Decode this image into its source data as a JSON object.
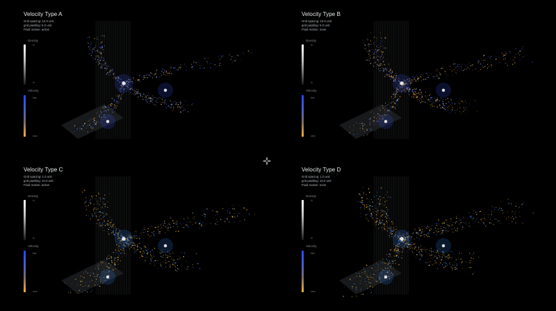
{
  "panels": [
    {
      "title": "Velocity Type A",
      "meta": [
        "Grid spacing: 10.0 unit",
        "grid padding: 5.0 unit",
        "Fluid motion: active"
      ],
      "legend": {
        "density": "Density",
        "velocity": "Velocity",
        "density_hi": "hi",
        "density_lo": "lo",
        "velocity_hi": "fast",
        "velocity_lo": "slow"
      },
      "palette": {
        "accent": "#3b5bff",
        "warm": "#f0a93a",
        "core": "#ffffff"
      }
    },
    {
      "title": "Velocity Type B",
      "meta": [
        "Grid spacing: 10.0 unit",
        "grid padding: 5.0 unit",
        "Fluid motion: none"
      ],
      "legend": {
        "density": "Density",
        "velocity": "Velocity",
        "density_hi": "hi",
        "density_lo": "lo",
        "velocity_hi": "fast",
        "velocity_lo": "slow"
      },
      "palette": {
        "accent": "#3b5bff",
        "warm": "#f0a93a",
        "core": "#ffffff"
      }
    },
    {
      "title": "Velocity Type C",
      "meta": [
        "Grid spacing: 1.0 unit",
        "grid padding: 10.0 unit",
        "Fluid motion: active"
      ],
      "legend": {
        "density": "Density",
        "velocity": "Velocity",
        "density_hi": "hi",
        "density_lo": "lo",
        "velocity_hi": "fast",
        "velocity_lo": "slow"
      },
      "palette": {
        "accent": "#3b8cff",
        "warm": "#f0b23a",
        "core": "#ffffff"
      }
    },
    {
      "title": "Velocity Type D",
      "meta": [
        "Grid spacing: 1.0 unit",
        "grid padding: 10.0 unit",
        "Fluid motion: none"
      ],
      "legend": {
        "density": "Density",
        "velocity": "Velocity",
        "density_hi": "hi",
        "density_lo": "lo",
        "velocity_hi": "fast",
        "velocity_lo": "slow"
      },
      "palette": {
        "accent": "#3b8cff",
        "warm": "#f0b23a",
        "core": "#ffffff"
      }
    }
  ],
  "center_icon": "sparkle-icon"
}
